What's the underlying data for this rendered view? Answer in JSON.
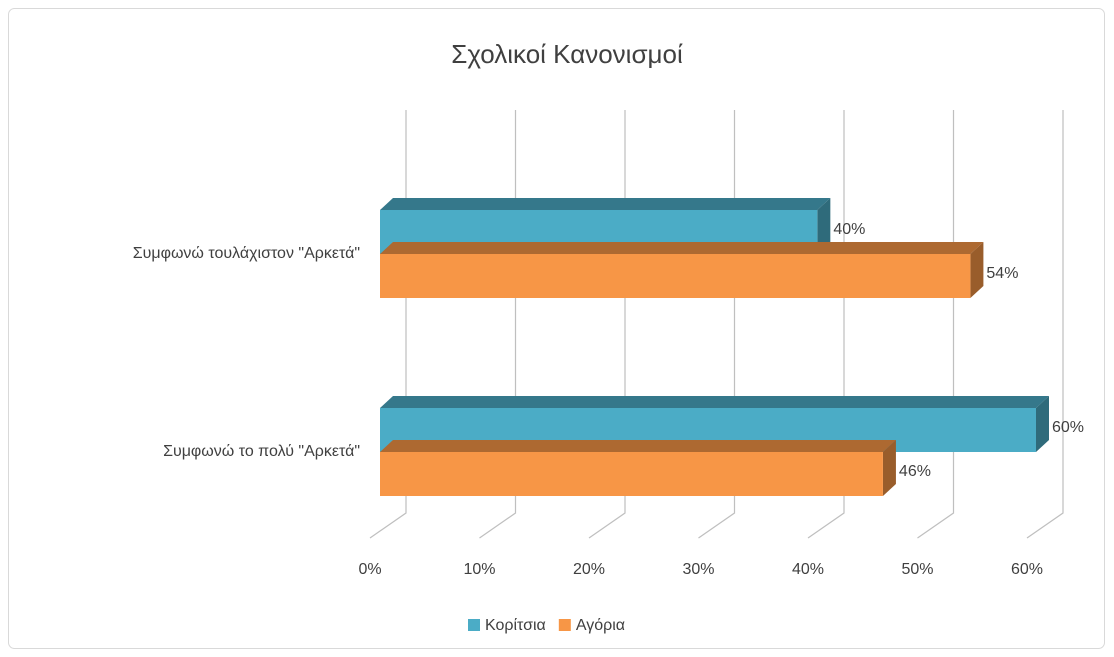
{
  "chart_data": {
    "type": "bar3d",
    "orientation": "horizontal",
    "title": "Σχολικοί Κανονισμοί",
    "categories": [
      "Συμφωνώ τουλάχιστον \"Αρκετά\"",
      "Συμφωνώ το πολύ \"Αρκετά\""
    ],
    "series": [
      {
        "name": "Κορίτσια",
        "color": "#4bacc6",
        "values": [
          40,
          60
        ],
        "value_labels": [
          "40%",
          "60%"
        ]
      },
      {
        "name": "Αγόρια",
        "color": "#f79646",
        "values": [
          54,
          46
        ],
        "value_labels": [
          "54%",
          "46%"
        ]
      }
    ],
    "xlim": [
      0,
      60
    ],
    "xticks": [
      {
        "value": 0,
        "label": "0%"
      },
      {
        "value": 10,
        "label": "10%"
      },
      {
        "value": 20,
        "label": "20%"
      },
      {
        "value": 30,
        "label": "30%"
      },
      {
        "value": 40,
        "label": "40%"
      },
      {
        "value": 50,
        "label": "50%"
      },
      {
        "value": 60,
        "label": "60%"
      }
    ],
    "grid": true,
    "legend": "bottom"
  }
}
